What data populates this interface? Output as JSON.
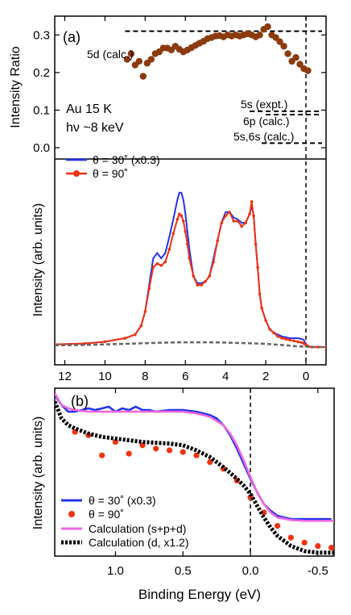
{
  "figure": {
    "panel_a_label": "(a)",
    "panel_b_label": "(b)",
    "sample_line1": "Au  15 K",
    "sample_line2": "hν ~8 keV"
  },
  "colors": {
    "blue": "#2233ee",
    "red": "#ee3311",
    "brown": "#8b3a0e",
    "gray": "#666666",
    "magenta": "#ee66dd",
    "black": "#000000"
  },
  "chart_data": [
    {
      "id": "ratio",
      "type": "scatter",
      "ylabel": "Intensity Ratio",
      "xlim": [
        12.5,
        -1.0
      ],
      "ylim": [
        -0.03,
        0.35
      ],
      "yticks": [
        0.0,
        0.1,
        0.2,
        0.3
      ],
      "ytick_labels": [
        "0.0",
        "0.1",
        "0.2",
        "0.3"
      ],
      "points": [
        [
          8.9,
          0.235
        ],
        [
          8.7,
          0.25
        ],
        [
          8.5,
          0.22
        ],
        [
          8.3,
          0.23
        ],
        [
          8.1,
          0.19
        ],
        [
          7.9,
          0.225
        ],
        [
          7.7,
          0.235
        ],
        [
          7.5,
          0.25
        ],
        [
          7.3,
          0.255
        ],
        [
          7.1,
          0.265
        ],
        [
          6.9,
          0.265
        ],
        [
          6.7,
          0.26
        ],
        [
          6.5,
          0.27
        ],
        [
          6.3,
          0.262
        ],
        [
          6.1,
          0.255
        ],
        [
          5.9,
          0.26
        ],
        [
          5.7,
          0.266
        ],
        [
          5.5,
          0.272
        ],
        [
          5.3,
          0.278
        ],
        [
          5.1,
          0.283
        ],
        [
          4.9,
          0.29
        ],
        [
          4.7,
          0.293
        ],
        [
          4.5,
          0.297
        ],
        [
          4.3,
          0.298
        ],
        [
          4.1,
          0.295
        ],
        [
          3.9,
          0.3
        ],
        [
          3.7,
          0.297
        ],
        [
          3.5,
          0.3
        ],
        [
          3.3,
          0.297
        ],
        [
          3.1,
          0.3
        ],
        [
          2.9,
          0.303
        ],
        [
          2.7,
          0.3
        ],
        [
          2.5,
          0.295
        ],
        [
          2.3,
          0.3
        ],
        [
          2.1,
          0.315
        ],
        [
          1.9,
          0.322
        ],
        [
          1.7,
          0.3
        ],
        [
          1.5,
          0.293
        ],
        [
          1.3,
          0.282
        ],
        [
          1.1,
          0.27
        ],
        [
          0.9,
          0.25
        ],
        [
          0.7,
          0.23
        ],
        [
          0.5,
          0.24
        ],
        [
          0.3,
          0.222
        ],
        [
          0.1,
          0.21
        ],
        [
          -0.1,
          0.205
        ]
      ],
      "reference_lines": [
        {
          "label": "5d (calc.)",
          "y": 0.31,
          "x_from": 9.0,
          "x_to": -0.8
        },
        {
          "label": "5s (expt.)",
          "y": 0.097,
          "x_from": 2.8,
          "x_to": -0.8
        },
        {
          "label": "6p (calc.)",
          "y": 0.088,
          "x_from": 2.0,
          "x_to": -0.8
        },
        {
          "label": "5s,6s (calc.)",
          "y": 0.012,
          "x_from": 2.2,
          "x_to": -0.8
        }
      ],
      "vline_x": 0.0
    },
    {
      "id": "spectra",
      "type": "line",
      "ylabel": "Intensity (arb. units)",
      "xlim": [
        12.5,
        -1.0
      ],
      "ylim": [
        0,
        1.06
      ],
      "xticks": [
        12,
        10,
        8,
        6,
        4,
        2,
        0
      ],
      "xtick_labels": [
        "12",
        "10",
        "8",
        "6",
        "4",
        "2",
        "0"
      ],
      "series": [
        {
          "name": "θ = 30˚ (x0.3)",
          "color_key": "blue",
          "x": [
            12.5,
            11,
            10,
            9,
            8.5,
            8.2,
            8.0,
            7.8,
            7.6,
            7.4,
            7.2,
            7.0,
            6.8,
            6.6,
            6.4,
            6.3,
            6.2,
            6.1,
            6.0,
            5.9,
            5.8,
            5.6,
            5.4,
            5.2,
            5.0,
            4.8,
            4.6,
            4.4,
            4.2,
            4.0,
            3.8,
            3.6,
            3.4,
            3.2,
            3.0,
            2.8,
            2.7,
            2.6,
            2.5,
            2.4,
            2.3,
            2.2,
            2.0,
            1.8,
            1.6,
            1.4,
            1.2,
            1.0,
            0.8,
            0.6,
            0.4,
            0.2,
            0.1,
            0.0,
            -0.1,
            -0.3,
            -0.6,
            -1.0
          ],
          "y": [
            0.015,
            0.02,
            0.03,
            0.05,
            0.07,
            0.12,
            0.2,
            0.35,
            0.5,
            0.53,
            0.5,
            0.53,
            0.62,
            0.72,
            0.83,
            0.87,
            0.87,
            0.83,
            0.75,
            0.65,
            0.55,
            0.4,
            0.36,
            0.36,
            0.37,
            0.4,
            0.5,
            0.6,
            0.7,
            0.76,
            0.76,
            0.73,
            0.72,
            0.7,
            0.7,
            0.75,
            0.8,
            0.74,
            0.58,
            0.45,
            0.3,
            0.22,
            0.15,
            0.1,
            0.08,
            0.07,
            0.06,
            0.055,
            0.05,
            0.05,
            0.05,
            0.045,
            0.04,
            0.015,
            0.005,
            0,
            0,
            0
          ]
        },
        {
          "name": "θ = 90˚",
          "color_key": "red",
          "x": [
            12.5,
            11,
            10,
            9,
            8.5,
            8.2,
            8.0,
            7.8,
            7.6,
            7.4,
            7.2,
            7.0,
            6.8,
            6.6,
            6.4,
            6.3,
            6.2,
            6.1,
            6.0,
            5.9,
            5.8,
            5.6,
            5.4,
            5.2,
            5.0,
            4.8,
            4.6,
            4.4,
            4.2,
            4.0,
            3.8,
            3.6,
            3.4,
            3.2,
            3.0,
            2.8,
            2.7,
            2.6,
            2.5,
            2.4,
            2.3,
            2.2,
            2.0,
            1.8,
            1.6,
            1.4,
            1.2,
            1.0,
            0.8,
            0.6,
            0.4,
            0.2,
            0.1,
            0.0,
            -0.1,
            -0.3,
            -0.6,
            -1.0
          ],
          "y": [
            0.015,
            0.02,
            0.03,
            0.05,
            0.07,
            0.12,
            0.2,
            0.33,
            0.45,
            0.47,
            0.46,
            0.48,
            0.55,
            0.64,
            0.72,
            0.75,
            0.74,
            0.71,
            0.65,
            0.58,
            0.5,
            0.4,
            0.35,
            0.35,
            0.37,
            0.4,
            0.48,
            0.6,
            0.7,
            0.74,
            0.76,
            0.71,
            0.71,
            0.68,
            0.7,
            0.75,
            0.82,
            0.74,
            0.58,
            0.45,
            0.3,
            0.22,
            0.15,
            0.1,
            0.08,
            0.06,
            0.05,
            0.045,
            0.04,
            0.035,
            0.03,
            0.025,
            0.02,
            0.01,
            0.005,
            0,
            0,
            0
          ]
        },
        {
          "name": "",
          "color_key": "gray",
          "dashed": true,
          "x": [
            12.5,
            11,
            10,
            9,
            8,
            7,
            6,
            5,
            4,
            3,
            2,
            1,
            0.5,
            0,
            -0.5,
            -1.0
          ],
          "y": [
            0.01,
            0.012,
            0.015,
            0.018,
            0.022,
            0.025,
            0.027,
            0.027,
            0.025,
            0.022,
            0.018,
            0.01,
            0.005,
            0.002,
            0.0,
            0.0
          ]
        }
      ]
    },
    {
      "id": "fermi_edge",
      "type": "line",
      "xlabel": "Binding Energy (eV)",
      "ylabel": "Intensity (arb. units)",
      "xlim": [
        1.45,
        -0.62
      ],
      "ylim": [
        0,
        1.0
      ],
      "xticks": [
        1.0,
        0.5,
        0.0,
        -0.5
      ],
      "xtick_labels": [
        "1.0",
        "0.5",
        "0.0",
        "-0.5"
      ],
      "vline_x": 0.0,
      "series": [
        {
          "name": "θ = 30˚ (x0.3)",
          "color_key": "blue",
          "style": "line",
          "x": [
            1.45,
            1.4,
            1.35,
            1.3,
            1.25,
            1.2,
            1.15,
            1.1,
            1.05,
            1.0,
            0.95,
            0.9,
            0.85,
            0.8,
            0.75,
            0.7,
            0.6,
            0.5,
            0.4,
            0.3,
            0.25,
            0.2,
            0.15,
            0.1,
            0.05,
            0.0,
            -0.05,
            -0.1,
            -0.15,
            -0.2,
            -0.3,
            -0.4,
            -0.5,
            -0.6
          ],
          "y": [
            0.96,
            0.9,
            0.86,
            0.86,
            0.87,
            0.88,
            0.87,
            0.88,
            0.89,
            0.86,
            0.88,
            0.87,
            0.89,
            0.87,
            0.87,
            0.86,
            0.87,
            0.87,
            0.86,
            0.84,
            0.82,
            0.78,
            0.72,
            0.64,
            0.55,
            0.46,
            0.38,
            0.31,
            0.27,
            0.24,
            0.22,
            0.22,
            0.22,
            0.22
          ]
        },
        {
          "name": "θ = 90˚",
          "color_key": "red",
          "style": "dots",
          "x": [
            1.3,
            1.2,
            1.1,
            1.0,
            0.9,
            0.8,
            0.7,
            0.6,
            0.5,
            0.4,
            0.3,
            0.2,
            0.1,
            0.0,
            -0.1,
            -0.2,
            -0.3,
            -0.4,
            -0.5,
            -0.6
          ],
          "y": [
            0.74,
            0.72,
            0.6,
            0.68,
            0.61,
            0.66,
            0.64,
            0.63,
            0.62,
            0.6,
            0.56,
            0.52,
            0.45,
            0.35,
            0.26,
            0.18,
            0.11,
            0.08,
            0.06,
            0.05
          ]
        },
        {
          "name": "Calculation (s+p+d)",
          "color_key": "magenta",
          "style": "line",
          "x": [
            1.45,
            1.4,
            1.35,
            1.3,
            1.2,
            1.1,
            1.0,
            0.9,
            0.8,
            0.7,
            0.6,
            0.5,
            0.4,
            0.3,
            0.2,
            0.15,
            0.1,
            0.05,
            0.0,
            -0.05,
            -0.1,
            -0.15,
            -0.2,
            -0.3,
            -0.4,
            -0.5,
            -0.62
          ],
          "y": [
            0.97,
            0.9,
            0.88,
            0.87,
            0.86,
            0.86,
            0.86,
            0.86,
            0.86,
            0.86,
            0.86,
            0.86,
            0.85,
            0.83,
            0.78,
            0.73,
            0.66,
            0.57,
            0.47,
            0.38,
            0.31,
            0.26,
            0.23,
            0.215,
            0.21,
            0.21,
            0.21
          ]
        },
        {
          "name": "Calculation (d, x1.2)",
          "color_key": "black",
          "style": "dotted",
          "x": [
            1.45,
            1.4,
            1.35,
            1.3,
            1.2,
            1.1,
            1.0,
            0.9,
            0.8,
            0.7,
            0.6,
            0.5,
            0.4,
            0.3,
            0.2,
            0.1,
            0.05,
            0.0,
            -0.05,
            -0.1,
            -0.15,
            -0.2,
            -0.3,
            -0.4,
            -0.5,
            -0.62
          ],
          "y": [
            0.92,
            0.82,
            0.78,
            0.76,
            0.73,
            0.71,
            0.7,
            0.69,
            0.68,
            0.675,
            0.67,
            0.66,
            0.63,
            0.59,
            0.53,
            0.46,
            0.42,
            0.37,
            0.3,
            0.23,
            0.17,
            0.12,
            0.06,
            0.03,
            0.02,
            0.02
          ]
        }
      ]
    }
  ]
}
